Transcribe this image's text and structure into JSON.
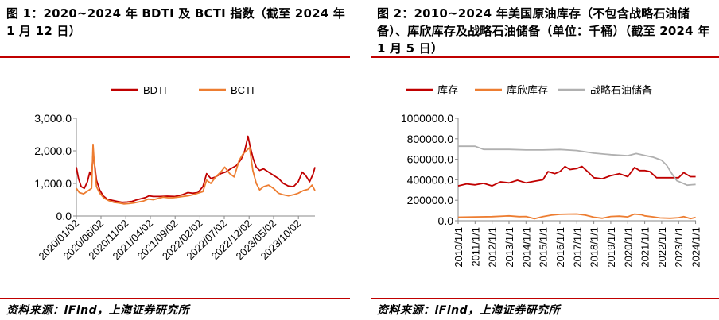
{
  "figures": [
    {
      "caption": "图 1：2020~2024 年 BDTI 及 BCTI 指数（截至 2024 年 1 月 12 日）",
      "source": "资料来源：iFind，上海证券研究所"
    },
    {
      "caption": "图 2：2010~2024 年美国原油库存（不包含战略石油储备）、库欣库存及战略石油储备（单位：千桶）（截至 2024 年 1 月 5 日）",
      "source": "资料来源：iFind，上海证券研究所"
    }
  ],
  "chart_data": [
    {
      "type": "line",
      "title": "",
      "xlabel": "",
      "ylabel": "",
      "ylim": [
        0,
        3000
      ],
      "yticks": [
        "0.0",
        "1,000.0",
        "2,000.0",
        "3,000.0"
      ],
      "xticks": [
        "2020/01/02",
        "2020/06/02",
        "2020/11/02",
        "2021/04/02",
        "2021/09/02",
        "2022/02/02",
        "2022/07/02",
        "2022/12/02",
        "2023/05/02",
        "2023/10/02"
      ],
      "x_range": [
        "2020/01/02",
        "2024/01/12"
      ],
      "legend_position": "top-center",
      "grid": false,
      "series": [
        {
          "name": "BDTI",
          "color": "#c00000",
          "points": [
            [
              "2020-01-02",
              1500
            ],
            [
              "2020-01-15",
              1150
            ],
            [
              "2020-02-01",
              900
            ],
            [
              "2020-02-20",
              850
            ],
            [
              "2020-03-10",
              1050
            ],
            [
              "2020-03-25",
              1350
            ],
            [
              "2020-04-05",
              1200
            ],
            [
              "2020-04-14",
              1900
            ],
            [
              "2020-04-22",
              1650
            ],
            [
              "2020-05-05",
              1100
            ],
            [
              "2020-05-25",
              800
            ],
            [
              "2020-06-15",
              620
            ],
            [
              "2020-07-10",
              520
            ],
            [
              "2020-08-10",
              480
            ],
            [
              "2020-09-10",
              450
            ],
            [
              "2020-10-10",
              420
            ],
            [
              "2020-11-10",
              430
            ],
            [
              "2020-12-10",
              450
            ],
            [
              "2021-01-10",
              500
            ],
            [
              "2021-02-10",
              540
            ],
            [
              "2021-03-05",
              570
            ],
            [
              "2021-03-25",
              620
            ],
            [
              "2021-04-20",
              600
            ],
            [
              "2021-06-01",
              600
            ],
            [
              "2021-07-15",
              610
            ],
            [
              "2021-09-01",
              600
            ],
            [
              "2021-10-15",
              650
            ],
            [
              "2021-11-20",
              720
            ],
            [
              "2021-12-20",
              700
            ],
            [
              "2022-01-20",
              720
            ],
            [
              "2022-02-20",
              900
            ],
            [
              "2022-03-15",
              1300
            ],
            [
              "2022-04-10",
              1150
            ],
            [
              "2022-05-10",
              1200
            ],
            [
              "2022-06-10",
              1300
            ],
            [
              "2022-07-10",
              1350
            ],
            [
              "2022-08-10",
              1450
            ],
            [
              "2022-09-15",
              1550
            ],
            [
              "2022-10-15",
              1750
            ],
            [
              "2022-11-05",
              2000
            ],
            [
              "2022-11-25",
              2450
            ],
            [
              "2022-12-10",
              2100
            ],
            [
              "2022-12-28",
              1750
            ],
            [
              "2023-01-15",
              1500
            ],
            [
              "2023-02-05",
              1400
            ],
            [
              "2023-03-01",
              1450
            ],
            [
              "2023-04-01",
              1350
            ],
            [
              "2023-05-01",
              1250
            ],
            [
              "2023-06-01",
              1150
            ],
            [
              "2023-07-01",
              1000
            ],
            [
              "2023-08-01",
              920
            ],
            [
              "2023-09-01",
              900
            ],
            [
              "2023-10-01",
              1050
            ],
            [
              "2023-10-25",
              1350
            ],
            [
              "2023-11-15",
              1250
            ],
            [
              "2023-12-10",
              1050
            ],
            [
              "2024-01-01",
              1300
            ],
            [
              "2024-01-12",
              1500
            ]
          ]
        },
        {
          "name": "BCTI",
          "color": "#ed7d31",
          "points": [
            [
              "2020-01-02",
              850
            ],
            [
              "2020-01-20",
              720
            ],
            [
              "2020-02-15",
              680
            ],
            [
              "2020-03-10",
              760
            ],
            [
              "2020-04-05",
              850
            ],
            [
              "2020-04-14",
              2200
            ],
            [
              "2020-04-22",
              1600
            ],
            [
              "2020-05-05",
              900
            ],
            [
              "2020-05-25",
              700
            ],
            [
              "2020-06-20",
              550
            ],
            [
              "2020-07-20",
              470
            ],
            [
              "2020-08-20",
              420
            ],
            [
              "2020-09-20",
              400
            ],
            [
              "2020-10-20",
              370
            ],
            [
              "2020-11-20",
              380
            ],
            [
              "2020-12-20",
              400
            ],
            [
              "2021-01-20",
              430
            ],
            [
              "2021-02-20",
              460
            ],
            [
              "2021-03-20",
              520
            ],
            [
              "2021-04-20",
              500
            ],
            [
              "2021-05-20",
              540
            ],
            [
              "2021-06-20",
              580
            ],
            [
              "2021-07-20",
              560
            ],
            [
              "2021-08-20",
              560
            ],
            [
              "2021-09-20",
              580
            ],
            [
              "2021-10-20",
              600
            ],
            [
              "2021-11-20",
              620
            ],
            [
              "2021-12-20",
              650
            ],
            [
              "2022-01-20",
              700
            ],
            [
              "2022-02-20",
              750
            ],
            [
              "2022-03-15",
              1100
            ],
            [
              "2022-04-10",
              1000
            ],
            [
              "2022-05-10",
              1200
            ],
            [
              "2022-06-10",
              1350
            ],
            [
              "2022-07-05",
              1500
            ],
            [
              "2022-08-05",
              1300
            ],
            [
              "2022-09-01",
              1200
            ],
            [
              "2022-10-01",
              1700
            ],
            [
              "2022-10-25",
              1900
            ],
            [
              "2022-11-15",
              2000
            ],
            [
              "2022-12-05",
              2100
            ],
            [
              "2022-12-25",
              1400
            ],
            [
              "2023-01-15",
              1000
            ],
            [
              "2023-02-05",
              800
            ],
            [
              "2023-03-01",
              900
            ],
            [
              "2023-04-01",
              950
            ],
            [
              "2023-05-01",
              850
            ],
            [
              "2023-06-01",
              700
            ],
            [
              "2023-07-01",
              650
            ],
            [
              "2023-08-01",
              620
            ],
            [
              "2023-09-01",
              650
            ],
            [
              "2023-10-01",
              700
            ],
            [
              "2023-11-01",
              780
            ],
            [
              "2023-12-01",
              820
            ],
            [
              "2023-12-25",
              950
            ],
            [
              "2024-01-12",
              780
            ]
          ]
        }
      ]
    },
    {
      "type": "line",
      "title": "",
      "xlabel": "",
      "ylabel": "",
      "ylim": [
        0,
        1000000
      ],
      "yticks": [
        "0.0",
        "200000.0",
        "400000.0",
        "600000.0",
        "800000.0",
        "1000000.0"
      ],
      "xticks": [
        "2010/1/1",
        "2011/1/1",
        "2012/1/1",
        "2013/1/1",
        "2014/1/1",
        "2015/1/1",
        "2016/1/1",
        "2017/1/1",
        "2018/1/1",
        "2019/1/1",
        "2020/1/1",
        "2021/1/1",
        "2022/1/1",
        "2023/1/1",
        "2024/1/1"
      ],
      "x_range": [
        "2010/1/1",
        "2024/1/5"
      ],
      "legend_position": "top-center",
      "grid": false,
      "series": [
        {
          "name": "库存",
          "color": "#c00000",
          "points": [
            [
              2010.0,
              340000
            ],
            [
              2010.5,
              360000
            ],
            [
              2011.0,
              350000
            ],
            [
              2011.5,
              365000
            ],
            [
              2012.0,
              340000
            ],
            [
              2012.5,
              380000
            ],
            [
              2013.0,
              370000
            ],
            [
              2013.5,
              395000
            ],
            [
              2014.0,
              370000
            ],
            [
              2014.5,
              385000
            ],
            [
              2015.0,
              400000
            ],
            [
              2015.3,
              480000
            ],
            [
              2015.7,
              460000
            ],
            [
              2016.0,
              480000
            ],
            [
              2016.3,
              530000
            ],
            [
              2016.6,
              500000
            ],
            [
              2017.0,
              510000
            ],
            [
              2017.3,
              530000
            ],
            [
              2017.7,
              470000
            ],
            [
              2018.0,
              420000
            ],
            [
              2018.5,
              410000
            ],
            [
              2019.0,
              440000
            ],
            [
              2019.5,
              460000
            ],
            [
              2020.0,
              430000
            ],
            [
              2020.4,
              520000
            ],
            [
              2020.7,
              490000
            ],
            [
              2021.0,
              490000
            ],
            [
              2021.3,
              480000
            ],
            [
              2021.7,
              420000
            ],
            [
              2022.0,
              420000
            ],
            [
              2022.5,
              420000
            ],
            [
              2023.0,
              420000
            ],
            [
              2023.3,
              470000
            ],
            [
              2023.7,
              430000
            ],
            [
              2024.0,
              430000
            ]
          ]
        },
        {
          "name": "库欣库存",
          "color": "#ed7d31",
          "points": [
            [
              2010.0,
              35000
            ],
            [
              2011.0,
              38000
            ],
            [
              2012.0,
              40000
            ],
            [
              2013.0,
              48000
            ],
            [
              2013.6,
              40000
            ],
            [
              2014.0,
              42000
            ],
            [
              2014.5,
              20000
            ],
            [
              2015.0,
              40000
            ],
            [
              2015.5,
              55000
            ],
            [
              2016.0,
              63000
            ],
            [
              2016.5,
              65000
            ],
            [
              2017.0,
              66000
            ],
            [
              2017.5,
              55000
            ],
            [
              2018.0,
              35000
            ],
            [
              2018.5,
              25000
            ],
            [
              2019.0,
              42000
            ],
            [
              2019.5,
              45000
            ],
            [
              2020.0,
              38000
            ],
            [
              2020.4,
              65000
            ],
            [
              2020.8,
              60000
            ],
            [
              2021.0,
              48000
            ],
            [
              2021.5,
              38000
            ],
            [
              2021.9,
              28000
            ],
            [
              2022.5,
              25000
            ],
            [
              2023.0,
              30000
            ],
            [
              2023.3,
              40000
            ],
            [
              2023.7,
              22000
            ],
            [
              2024.0,
              33000
            ]
          ]
        },
        {
          "name": "战略石油储备",
          "color": "#b0b0b0",
          "points": [
            [
              2010.0,
              727000
            ],
            [
              2011.0,
              727000
            ],
            [
              2011.5,
              696000
            ],
            [
              2012.0,
              696000
            ],
            [
              2013.0,
              696000
            ],
            [
              2014.0,
              691000
            ],
            [
              2015.0,
              691000
            ],
            [
              2016.0,
              695000
            ],
            [
              2017.0,
              685000
            ],
            [
              2018.0,
              660000
            ],
            [
              2019.0,
              645000
            ],
            [
              2020.0,
              635000
            ],
            [
              2020.5,
              656000
            ],
            [
              2021.0,
              638000
            ],
            [
              2021.5,
              620000
            ],
            [
              2022.0,
              590000
            ],
            [
              2022.3,
              540000
            ],
            [
              2022.6,
              460000
            ],
            [
              2022.9,
              390000
            ],
            [
              2023.2,
              370000
            ],
            [
              2023.5,
              347000
            ],
            [
              2023.8,
              352000
            ],
            [
              2024.0,
              354000
            ]
          ]
        }
      ]
    }
  ]
}
